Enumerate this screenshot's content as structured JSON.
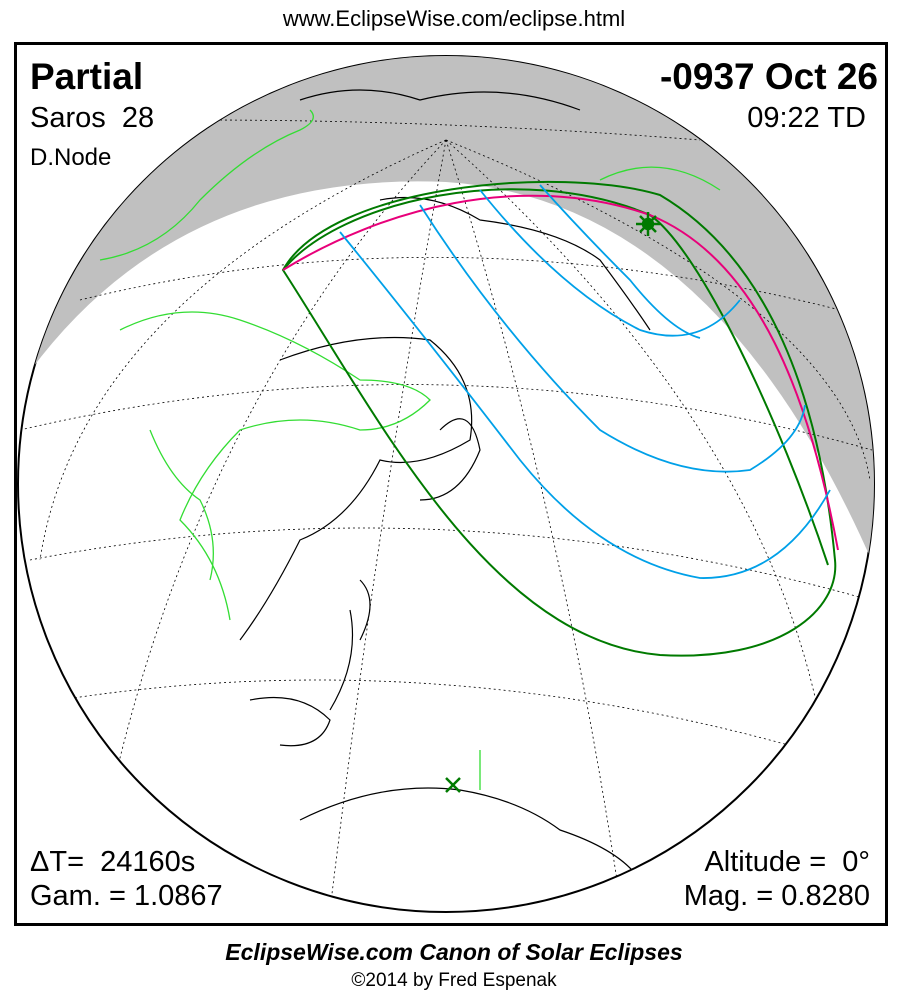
{
  "header_url": "www.EclipseWise.com/eclipse.html",
  "eclipse": {
    "type": "Partial",
    "date": "-0937 Oct 26",
    "saros": "Saros  28",
    "time": "09:22 TD",
    "node": "D.Node",
    "delta_t": "ΔT=  24160s",
    "gamma": "Gam. = 1.0867",
    "altitude": "Altitude =  0°",
    "magnitude": "Mag. = 0.8280"
  },
  "footer": {
    "title": "EclipseWise.com Canon of Solar Eclipses",
    "copyright": "©2014 by Fred Espenak"
  },
  "colors": {
    "night_shade": "#c0c0c0",
    "eclipse_limits": "#007a00",
    "magnitude_curves": "#00a0e8",
    "sunrise_sunset_curve": "#e8007a",
    "borders": "#33dd33",
    "coastlines": "#000000"
  },
  "markers": {
    "greatest_eclipse": "star-icon",
    "subsolar_point": "x-mark-icon"
  }
}
